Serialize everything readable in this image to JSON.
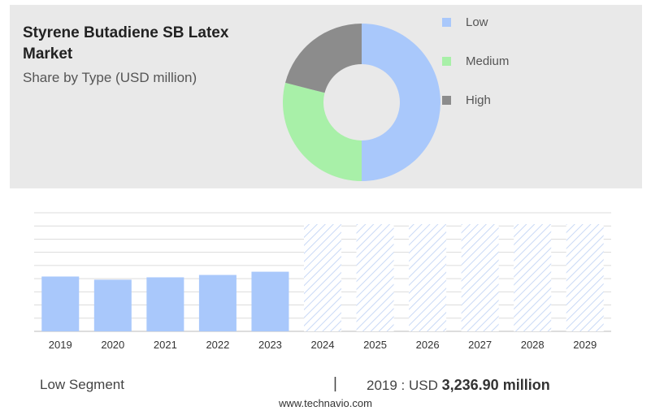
{
  "header": {
    "title": "Styrene Butadiene SB Latex Market",
    "subtitle": "Share by Type (USD million)"
  },
  "legend": [
    {
      "label": "Low",
      "color": "#a9c8fb"
    },
    {
      "label": "Medium",
      "color": "#a8f0a8"
    },
    {
      "label": "High",
      "color": "#8c8c8c"
    }
  ],
  "footer": {
    "segment": "Low Segment",
    "separator": "|",
    "year_prefix": "2019 : USD",
    "value": "3,236.90 million",
    "source": "www.technavio.com"
  },
  "chart_data": [
    {
      "type": "pie",
      "variant": "donut",
      "title": "Share by Type (USD million)",
      "slices": [
        {
          "label": "Low",
          "value": 50,
          "color": "#a9c8fb"
        },
        {
          "label": "Medium",
          "value": 29,
          "color": "#a8f0a8"
        },
        {
          "label": "High",
          "value": 21,
          "color": "#8c8c8c"
        }
      ]
    },
    {
      "type": "bar",
      "categories": [
        "2019",
        "2020",
        "2021",
        "2022",
        "2023",
        "2024",
        "2025",
        "2026",
        "2027",
        "2028",
        "2029"
      ],
      "values": [
        3236.9,
        3050,
        3190,
        3330,
        3520,
        null,
        null,
        null,
        null,
        null,
        null
      ],
      "forecast_categories": [
        "2024",
        "2025",
        "2026",
        "2027",
        "2028",
        "2029"
      ],
      "series_color": "#a9c8fb",
      "ylim": [
        0,
        7000
      ],
      "grid": true
    }
  ]
}
